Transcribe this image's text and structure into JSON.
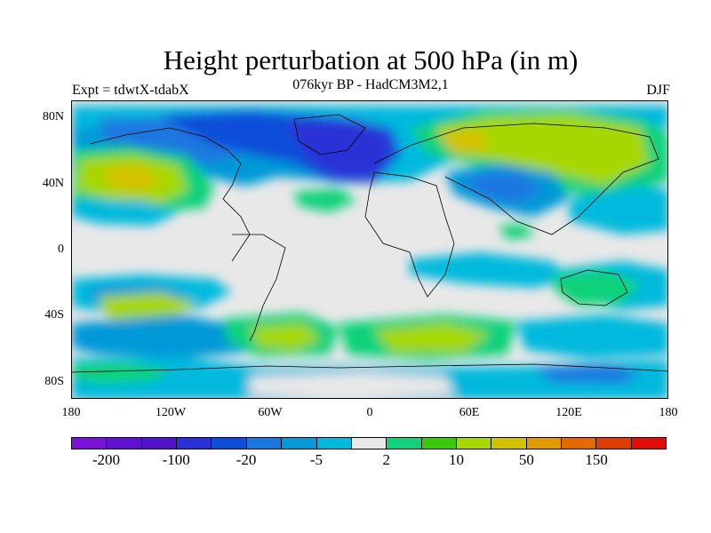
{
  "title": "Height perturbation at 500 hPa (in m)",
  "subtitle": "076kyr BP - HadCM3M2,1",
  "left_label": "Expt = tdwtX-tdabX",
  "right_label": "DJF",
  "lat_ticks": [
    "80N",
    "40N",
    "0",
    "40S",
    "80S"
  ],
  "lon_ticks": [
    "180",
    "120W",
    "60W",
    "0",
    "60E",
    "120E",
    "180"
  ],
  "colorbar": {
    "colors": [
      "#7a12d8",
      "#5f12d2",
      "#4f14cc",
      "#2b30d6",
      "#0d4ed9",
      "#1a78e0",
      "#0599d8",
      "#00b9dd",
      "#e8e8e8",
      "#11d27a",
      "#3bc90f",
      "#a6d700",
      "#d4c100",
      "#e19a00",
      "#e26a00",
      "#de3c00",
      "#e30a0a"
    ],
    "labels": [
      {
        "text": "-200",
        "edge": 1
      },
      {
        "text": "-100",
        "edge": 3
      },
      {
        "text": "-20",
        "edge": 5
      },
      {
        "text": "-5",
        "edge": 7
      },
      {
        "text": "2",
        "edge": 9
      },
      {
        "text": "10",
        "edge": 11
      },
      {
        "text": "50",
        "edge": 13
      },
      {
        "text": "150",
        "edge": 15
      }
    ]
  }
}
